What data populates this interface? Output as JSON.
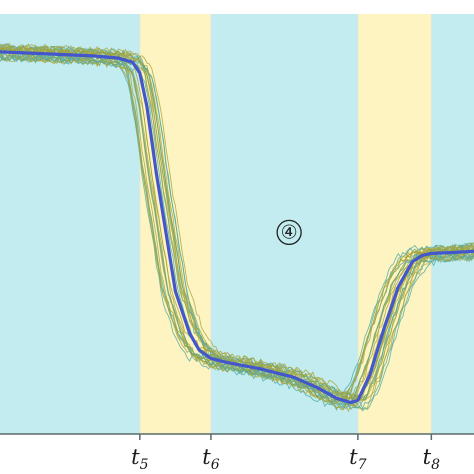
{
  "chart_data": {
    "type": "line",
    "title": "",
    "xlabel": "",
    "ylabel": "",
    "xlim": [
      0,
      100
    ],
    "ylim": [
      0,
      100
    ],
    "grid": false,
    "legend": "none",
    "phases": [
      {
        "from": 0,
        "to": 29.5,
        "kind": "steady"
      },
      {
        "from": 29.5,
        "to": 44.5,
        "kind": "transition"
      },
      {
        "from": 44.5,
        "to": 75.5,
        "kind": "steady"
      },
      {
        "from": 75.5,
        "to": 91,
        "kind": "transition"
      },
      {
        "from": 91,
        "to": 100,
        "kind": "steady"
      }
    ],
    "x_ticks": [
      {
        "x": 29.5,
        "base": "t",
        "sub": "5"
      },
      {
        "x": 44.5,
        "base": "t",
        "sub": "6"
      },
      {
        "x": 75.5,
        "base": "t",
        "sub": "7"
      },
      {
        "x": 91,
        "base": "t",
        "sub": "8"
      }
    ],
    "annotation": {
      "text": "④",
      "x": 61,
      "y": 48
    },
    "mean_series": {
      "x": [
        0,
        10,
        20,
        25,
        28,
        29.5,
        31,
        33,
        35,
        37,
        40,
        42,
        44.5,
        48,
        55,
        62,
        67,
        71,
        74,
        75.5,
        78,
        81,
        84,
        87,
        89,
        91,
        95,
        100
      ],
      "y": [
        91,
        90.5,
        90,
        89.5,
        88.5,
        86,
        78,
        62,
        48,
        34,
        24,
        20,
        18,
        17,
        15.5,
        13.5,
        11,
        8.5,
        7.5,
        8,
        14,
        25,
        35,
        41,
        42.5,
        43,
        43.2,
        43.5
      ]
    },
    "replicate_count": 26,
    "colors": {
      "steady_band": "#c2ecef",
      "transition_band": "#fdf4c2",
      "band_border": "#dfe7e0",
      "mean_line": "#4356cc",
      "replicate_a": "#a6a43a",
      "replicate_b": "#4fa9a3",
      "axis": "#5a6b6b"
    }
  }
}
